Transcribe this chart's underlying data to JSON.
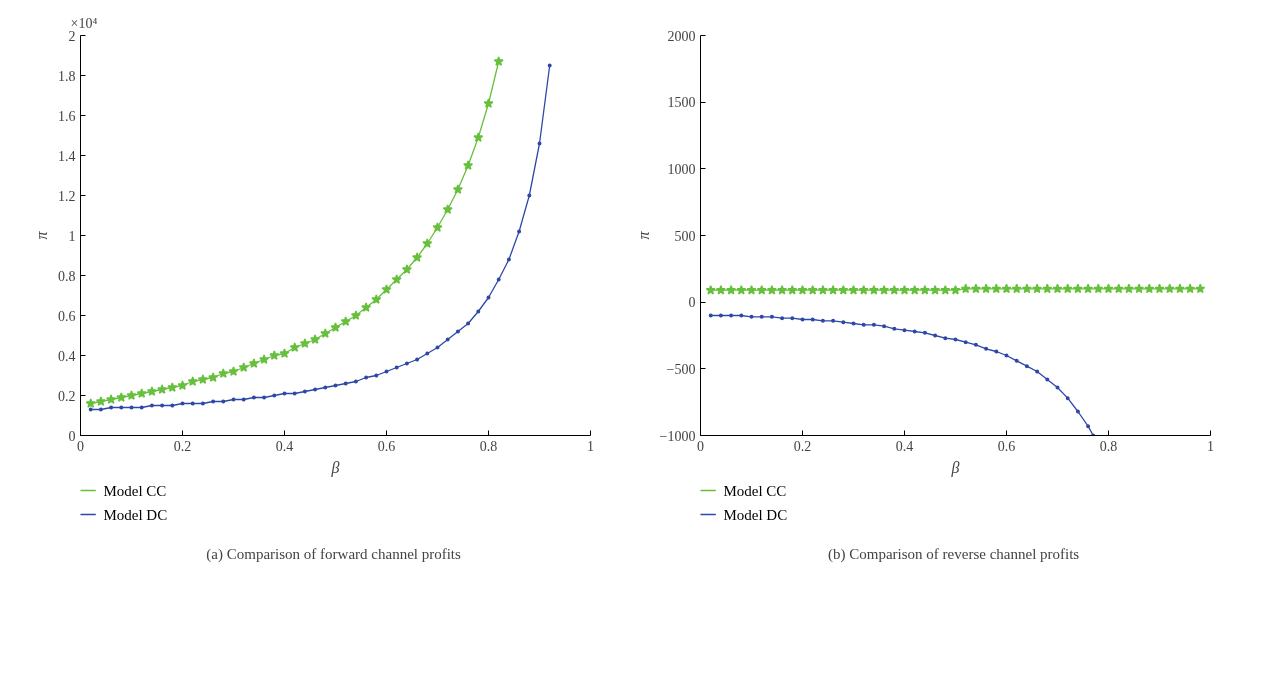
{
  "chart_data": [
    {
      "type": "line",
      "title": "(a)  Comparison of forward channel profits",
      "xlabel": "β",
      "ylabel": "π",
      "annotations": [
        "×10⁴"
      ],
      "xlim": [
        0,
        1
      ],
      "ylim": [
        0,
        2
      ],
      "xticks": [
        0,
        0.2,
        0.4,
        0.6,
        0.8,
        1
      ],
      "yticks": [
        0,
        0.2,
        0.4,
        0.6,
        0.8,
        1,
        1.2,
        1.4,
        1.6,
        1.8,
        2
      ],
      "grid": false,
      "legend": "bottom left",
      "series": [
        {
          "name": "Model CC",
          "color": "#66c03c",
          "marker": "star",
          "x": [
            0.02,
            0.04,
            0.06,
            0.08,
            0.1,
            0.12,
            0.14,
            0.16,
            0.18,
            0.2,
            0.22,
            0.24,
            0.26,
            0.28,
            0.3,
            0.32,
            0.34,
            0.36,
            0.38,
            0.4,
            0.42,
            0.44,
            0.46,
            0.48,
            0.5,
            0.52,
            0.54,
            0.56,
            0.58,
            0.6,
            0.62,
            0.64,
            0.66,
            0.68,
            0.7,
            0.72,
            0.74,
            0.76,
            0.78,
            0.8,
            0.82
          ],
          "values": [
            0.16,
            0.17,
            0.18,
            0.19,
            0.2,
            0.21,
            0.22,
            0.23,
            0.24,
            0.25,
            0.27,
            0.28,
            0.29,
            0.31,
            0.32,
            0.34,
            0.36,
            0.38,
            0.4,
            0.41,
            0.44,
            0.46,
            0.48,
            0.51,
            0.54,
            0.57,
            0.6,
            0.64,
            0.68,
            0.73,
            0.78,
            0.83,
            0.89,
            0.96,
            1.04,
            1.13,
            1.23,
            1.35,
            1.49,
            1.66,
            1.87
          ]
        },
        {
          "name": "Model DC",
          "color": "#2e48a8",
          "marker": "circle",
          "x": [
            0.02,
            0.04,
            0.06,
            0.08,
            0.1,
            0.12,
            0.14,
            0.16,
            0.18,
            0.2,
            0.22,
            0.24,
            0.26,
            0.28,
            0.3,
            0.32,
            0.34,
            0.36,
            0.38,
            0.4,
            0.42,
            0.44,
            0.46,
            0.48,
            0.5,
            0.52,
            0.54,
            0.56,
            0.58,
            0.6,
            0.62,
            0.64,
            0.66,
            0.68,
            0.7,
            0.72,
            0.74,
            0.76,
            0.78,
            0.8,
            0.82,
            0.84,
            0.86,
            0.88,
            0.9,
            0.92
          ],
          "values": [
            0.13,
            0.13,
            0.14,
            0.14,
            0.14,
            0.14,
            0.15,
            0.15,
            0.15,
            0.16,
            0.16,
            0.16,
            0.17,
            0.17,
            0.18,
            0.18,
            0.19,
            0.19,
            0.2,
            0.21,
            0.21,
            0.22,
            0.23,
            0.24,
            0.25,
            0.26,
            0.27,
            0.29,
            0.3,
            0.32,
            0.34,
            0.36,
            0.38,
            0.41,
            0.44,
            0.48,
            0.52,
            0.56,
            0.62,
            0.69,
            0.78,
            0.88,
            1.02,
            1.2,
            1.46,
            1.85
          ]
        }
      ]
    },
    {
      "type": "line",
      "title": "(b)  Comparison of reverse channel profits",
      "xlabel": "β",
      "ylabel": "π",
      "xlim": [
        0,
        1
      ],
      "ylim": [
        -1000,
        2000
      ],
      "xticks": [
        0,
        0.2,
        0.4,
        0.6,
        0.8,
        1
      ],
      "yticks": [
        {
          "value": -1000,
          "label": "−1000"
        },
        {
          "value": -500,
          "label": "−500"
        },
        0,
        500,
        1000,
        1500,
        2000
      ],
      "grid": false,
      "legend": "bottom left",
      "series": [
        {
          "name": "Model CC",
          "color": "#66c03c",
          "marker": "star",
          "x": [
            0.02,
            0.04,
            0.06,
            0.08,
            0.1,
            0.12,
            0.14,
            0.16,
            0.18,
            0.2,
            0.22,
            0.24,
            0.26,
            0.28,
            0.3,
            0.32,
            0.34,
            0.36,
            0.38,
            0.4,
            0.42,
            0.44,
            0.46,
            0.48,
            0.5,
            0.52,
            0.54,
            0.56,
            0.58,
            0.6,
            0.62,
            0.64,
            0.66,
            0.68,
            0.7,
            0.72,
            0.74,
            0.76,
            0.78,
            0.8,
            0.82,
            0.84,
            0.86,
            0.88,
            0.9,
            0.92,
            0.94,
            0.96,
            0.98
          ],
          "values": [
            90,
            90,
            90,
            90,
            90,
            90,
            90,
            90,
            90,
            90,
            90,
            90,
            90,
            90,
            90,
            90,
            90,
            90,
            90,
            90,
            90,
            90,
            90,
            90,
            90,
            100,
            100,
            100,
            100,
            100,
            100,
            100,
            100,
            100,
            100,
            100,
            100,
            100,
            100,
            100,
            100,
            100,
            100,
            100,
            100,
            100,
            100,
            100,
            100
          ]
        },
        {
          "name": "Model DC",
          "color": "#2e48a8",
          "marker": "circle",
          "x": [
            0.02,
            0.04,
            0.06,
            0.08,
            0.1,
            0.12,
            0.14,
            0.16,
            0.18,
            0.2,
            0.22,
            0.24,
            0.26,
            0.28,
            0.3,
            0.32,
            0.34,
            0.36,
            0.38,
            0.4,
            0.42,
            0.44,
            0.46,
            0.48,
            0.5,
            0.52,
            0.54,
            0.56,
            0.58,
            0.6,
            0.62,
            0.64,
            0.66,
            0.68,
            0.7,
            0.72,
            0.74,
            0.76,
            0.77
          ],
          "values": [
            -100,
            -100,
            -100,
            -100,
            -110,
            -110,
            -110,
            -120,
            -120,
            -130,
            -130,
            -140,
            -140,
            -150,
            -160,
            -170,
            -170,
            -180,
            -200,
            -210,
            -220,
            -230,
            -250,
            -270,
            -280,
            -300,
            -320,
            -350,
            -370,
            -400,
            -440,
            -480,
            -520,
            -580,
            -640,
            -720,
            -820,
            -930,
            -1000
          ]
        }
      ]
    }
  ]
}
